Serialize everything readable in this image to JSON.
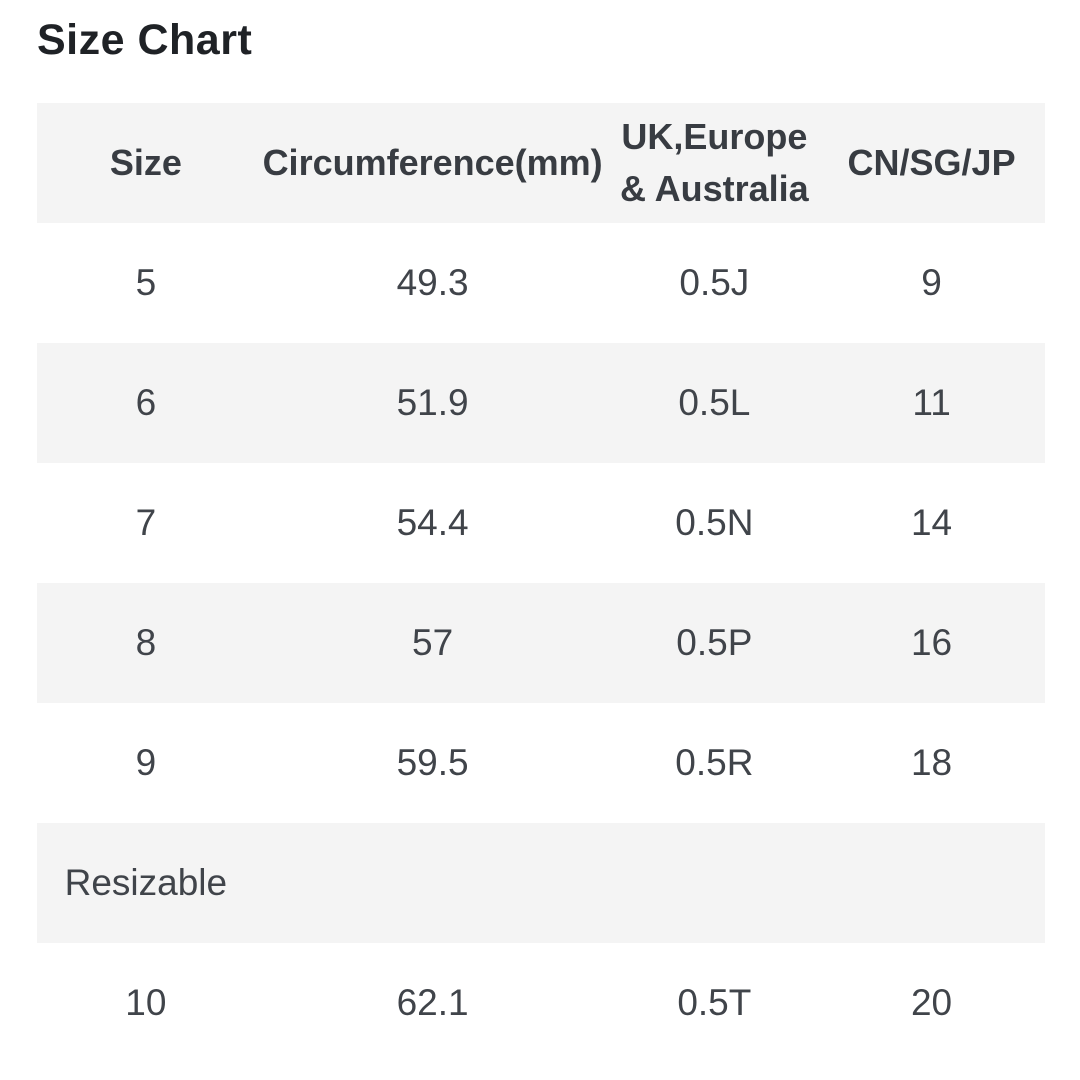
{
  "title": "Size Chart",
  "table": {
    "columns": [
      "Size",
      "Circumference(mm)",
      "UK,Europe & Australia",
      "CN/SG/JP"
    ],
    "rows": [
      {
        "cells": [
          "5",
          "49.3",
          "0.5J",
          "9"
        ]
      },
      {
        "cells": [
          "6",
          "51.9",
          "0.5L",
          "11"
        ]
      },
      {
        "cells": [
          "7",
          "54.4",
          "0.5N",
          "14"
        ]
      },
      {
        "cells": [
          "8",
          "57",
          "0.5P",
          "16"
        ]
      },
      {
        "cells": [
          "9",
          "59.5",
          "0.5R",
          "18"
        ]
      },
      {
        "cells": [
          "Resizable",
          "",
          "",
          ""
        ]
      },
      {
        "cells": [
          "10",
          "62.1",
          "0.5T",
          "20"
        ]
      }
    ]
  },
  "colors": {
    "background": "#ffffff",
    "stripe": "#f4f4f4",
    "title_text": "#1f2226",
    "header_text": "#383c42",
    "cell_text": "#40444a"
  }
}
